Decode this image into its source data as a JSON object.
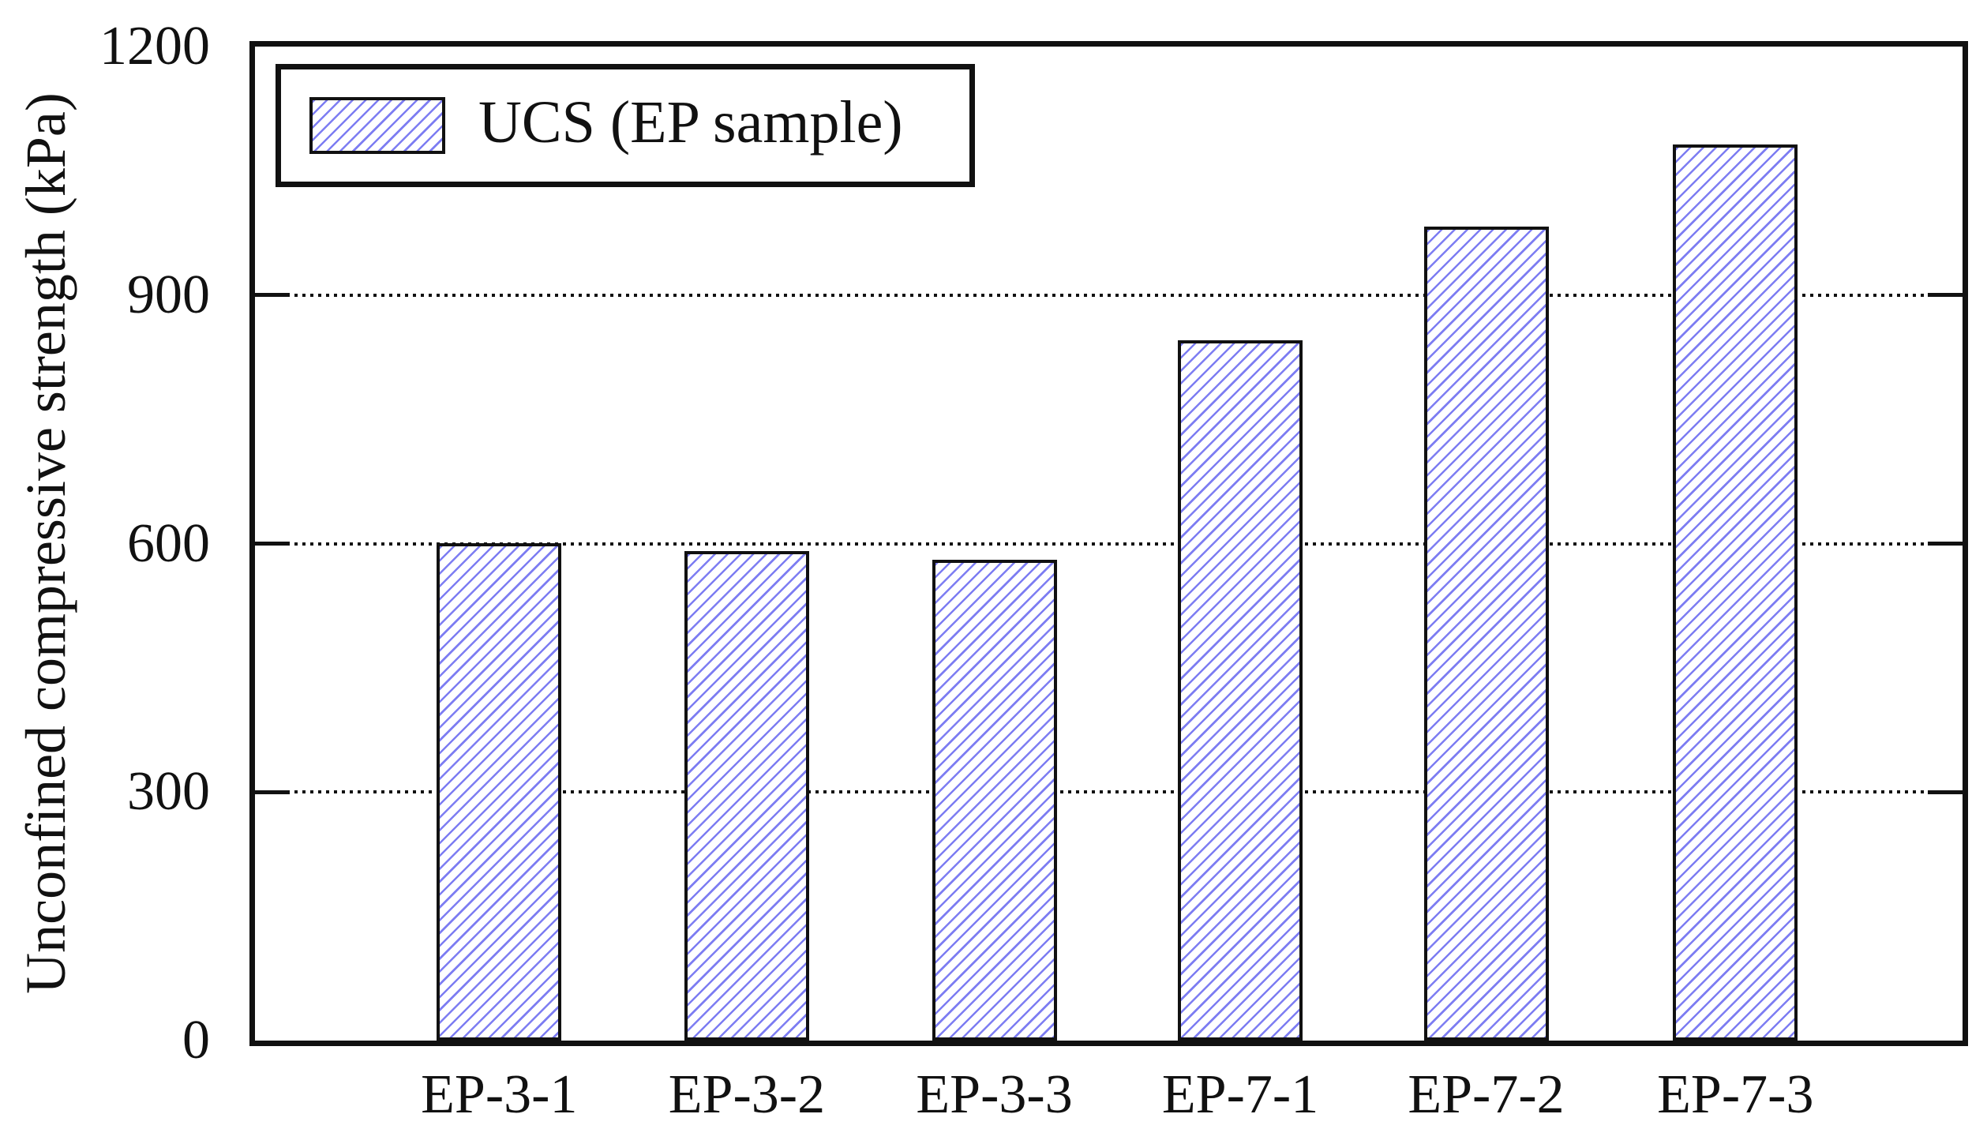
{
  "figure": {
    "background": "#ffffff",
    "frame_color": "#111111"
  },
  "chart_data": {
    "type": "bar",
    "title": "",
    "xlabel": "",
    "ylabel": "Unconfined compressive strength (kPa)",
    "categories": [
      "EP-3-1",
      "EP-3-2",
      "EP-3-3",
      "EP-7-1",
      "EP-7-2",
      "EP-7-3"
    ],
    "values": [
      597,
      587,
      577,
      842,
      979,
      1078
    ],
    "series_name": "UCS (EP sample)",
    "ylim": [
      0,
      1200
    ],
    "yticks": [
      0,
      300,
      600,
      900,
      1200
    ],
    "gridlines": [
      300,
      600,
      900
    ],
    "grid_style": "dotted",
    "legend_position": "upper-left",
    "bar_style": {
      "fill": "#ffffff",
      "hatch": "diagonal-forward",
      "hatch_color": "#7d7df2",
      "border_color": "#111111"
    }
  },
  "legend": {
    "label": "UCS (EP sample)"
  }
}
